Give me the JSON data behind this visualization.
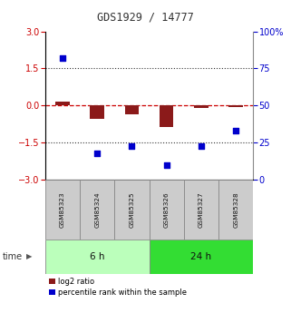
{
  "title": "GDS1929 / 14777",
  "samples": [
    "GSM85323",
    "GSM85324",
    "GSM85325",
    "GSM85326",
    "GSM85327",
    "GSM85328"
  ],
  "log2_ratio": [
    0.15,
    -0.55,
    -0.35,
    -0.85,
    -0.1,
    -0.07
  ],
  "percentile_rank": [
    82,
    18,
    23,
    10,
    23,
    33
  ],
  "ylim_left": [
    -3,
    3
  ],
  "ylim_right": [
    0,
    100
  ],
  "yticks_left": [
    -3,
    -1.5,
    0,
    1.5,
    3
  ],
  "yticks_right": [
    0,
    25,
    50,
    75,
    100
  ],
  "group_labels": [
    "6 h",
    "24 h"
  ],
  "group_ranges": [
    [
      0,
      3
    ],
    [
      3,
      6
    ]
  ],
  "group_color_light": "#bbffbb",
  "group_color_dark": "#33dd33",
  "bar_color": "#8B1A1A",
  "dot_color": "#0000cc",
  "legend_bar_label": "log2 ratio",
  "legend_dot_label": "percentile rank within the sample",
  "plot_bg": "#ffffff",
  "dashed_zero_color": "#cc0000",
  "dotted_line_color": "#333333",
  "ylabel_left_color": "#cc0000",
  "ylabel_right_color": "#0000cc",
  "sample_box_color": "#cccccc",
  "sample_box_edge": "#888888",
  "title_color": "#333333",
  "time_label": "time"
}
